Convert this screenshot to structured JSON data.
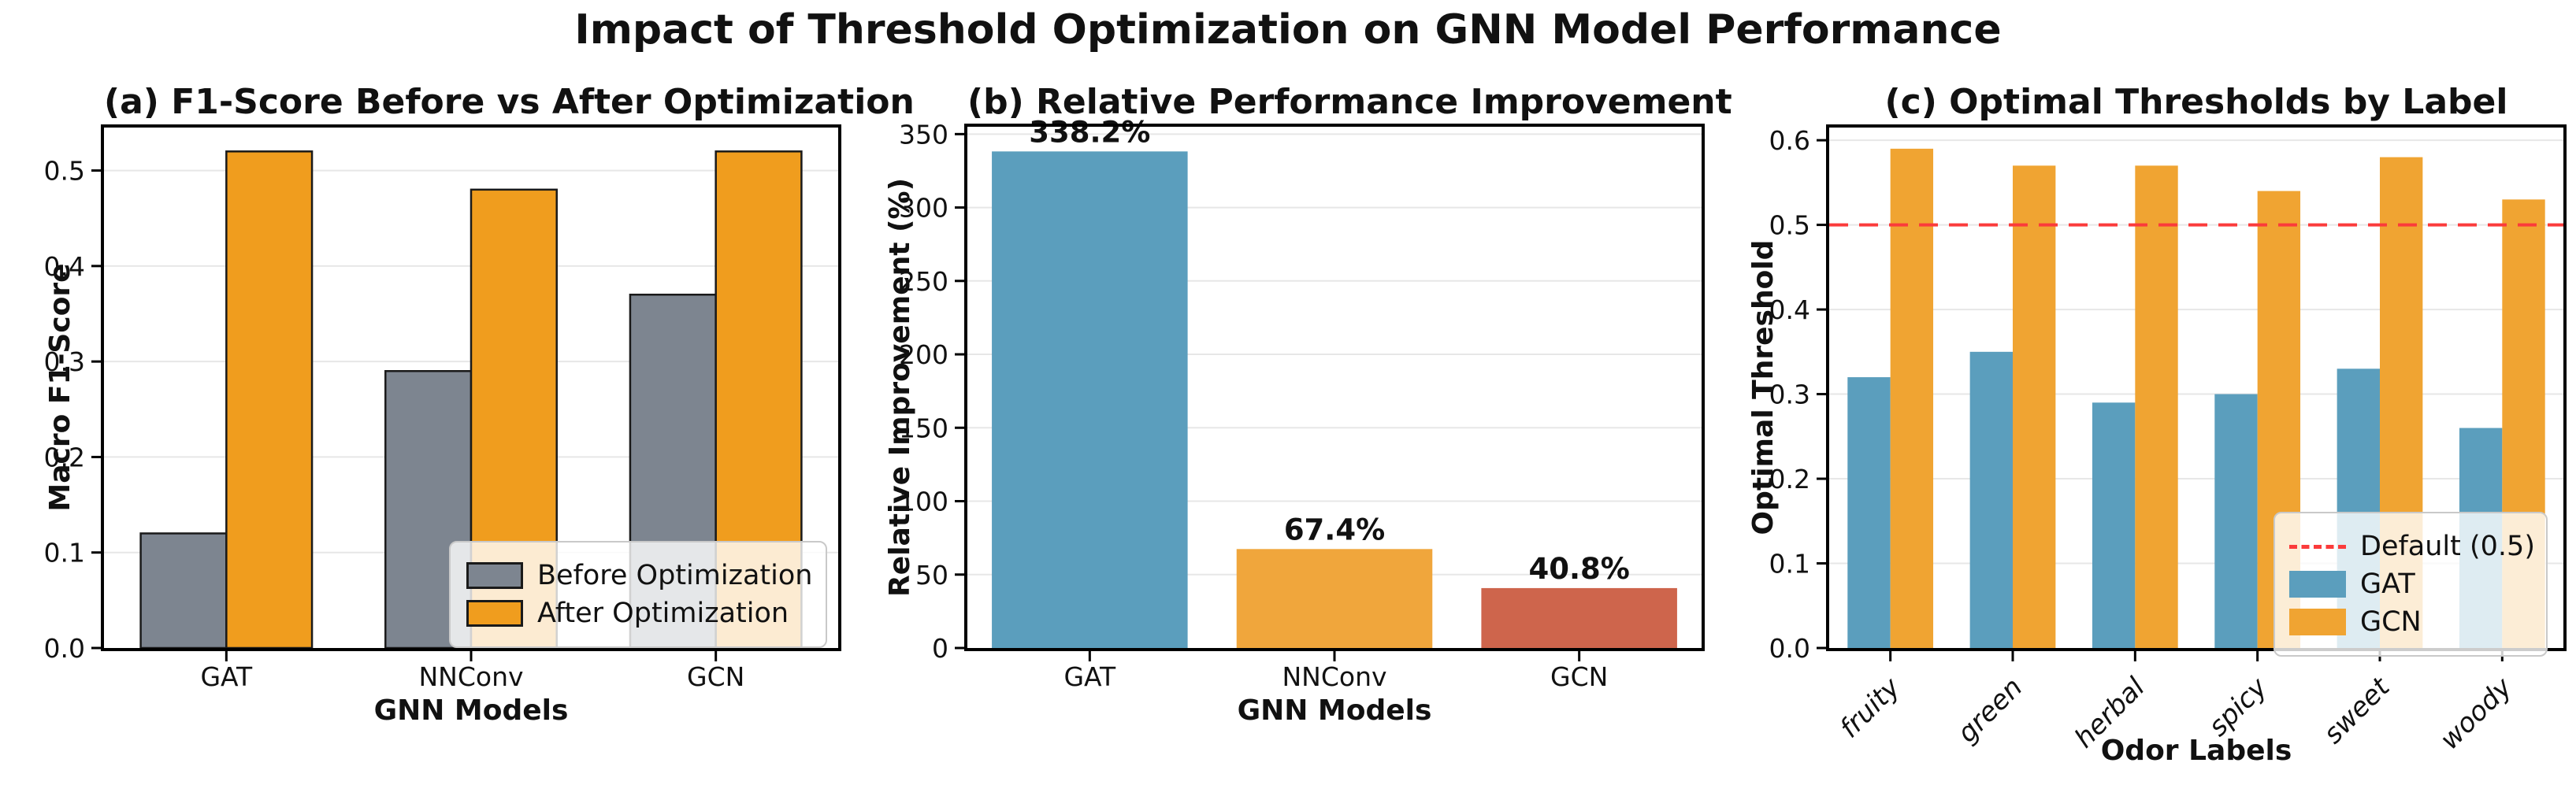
{
  "header": {
    "title": "Impact of Threshold Optimization on GNN Model Performance"
  },
  "palette": {
    "gray": "#7D8590",
    "orange_deep": "#F09D1E",
    "orange": "#F0A63C",
    "orange_c": "#F0A432",
    "blue": "#5B9EBD",
    "red": "#CE654C",
    "hline_red": "#FB3B3B",
    "grid": "#E7E7E7",
    "spine": "#000000"
  },
  "chart_data": [
    {
      "id": "a",
      "type": "bar",
      "title": "(a) F1-Score Before vs After Optimization",
      "xlabel": "GNN Models",
      "ylabel": "Macro F1-Score",
      "categories": [
        "GAT",
        "NNConv",
        "GCN"
      ],
      "series": [
        {
          "name": "Before Optimization",
          "color": "gray",
          "values": [
            0.12,
            0.29,
            0.37
          ]
        },
        {
          "name": "After Optimization",
          "color": "orange_deep",
          "values": [
            0.52,
            0.48,
            0.52
          ]
        }
      ],
      "ylim": [
        0,
        0.545
      ],
      "yticks": [
        {
          "v": 0.0,
          "label": "0.0"
        },
        {
          "v": 0.1,
          "label": "0.1"
        },
        {
          "v": 0.2,
          "label": "0.2"
        },
        {
          "v": 0.3,
          "label": "0.3"
        },
        {
          "v": 0.4,
          "label": "0.4"
        },
        {
          "v": 0.5,
          "label": "0.5"
        }
      ],
      "grid": true,
      "bar_edge": true,
      "legend_position": "lower right"
    },
    {
      "id": "b",
      "type": "bar",
      "title": "(b) Relative Performance Improvement",
      "xlabel": "GNN Models",
      "ylabel": "Relative Improvement (%)",
      "categories": [
        "GAT",
        "NNConv",
        "GCN"
      ],
      "values": [
        338.2,
        67.4,
        40.8
      ],
      "bar_labels": [
        "338.2%",
        "67.4%",
        "40.8%"
      ],
      "bar_colors": [
        "blue",
        "orange",
        "red"
      ],
      "ylim": [
        0,
        355
      ],
      "yticks": [
        {
          "v": 0,
          "label": "0"
        },
        {
          "v": 50,
          "label": "50"
        },
        {
          "v": 100,
          "label": "100"
        },
        {
          "v": 150,
          "label": "150"
        },
        {
          "v": 200,
          "label": "200"
        },
        {
          "v": 250,
          "label": "250"
        },
        {
          "v": 300,
          "label": "300"
        },
        {
          "v": 350,
          "label": "350"
        }
      ],
      "grid": true,
      "bar_edge": false
    },
    {
      "id": "c",
      "type": "bar",
      "title": "(c) Optimal Thresholds by Label",
      "xlabel": "Odor Labels",
      "ylabel": "Optimal Threshold",
      "categories": [
        "fruity",
        "green",
        "herbal",
        "spicy",
        "sweet",
        "woody"
      ],
      "series": [
        {
          "name": "GAT",
          "color": "blue",
          "values": [
            0.32,
            0.35,
            0.29,
            0.3,
            0.33,
            0.26
          ]
        },
        {
          "name": "GCN",
          "color": "orange_c",
          "values": [
            0.59,
            0.57,
            0.57,
            0.54,
            0.58,
            0.53
          ]
        }
      ],
      "hline": {
        "y": 0.5,
        "label": "Default (0.5)",
        "style": "dashed"
      },
      "ylim": [
        0,
        0.615
      ],
      "yticks": [
        {
          "v": 0.0,
          "label": "0.0"
        },
        {
          "v": 0.1,
          "label": "0.1"
        },
        {
          "v": 0.2,
          "label": "0.2"
        },
        {
          "v": 0.3,
          "label": "0.3"
        },
        {
          "v": 0.4,
          "label": "0.4"
        },
        {
          "v": 0.5,
          "label": "0.5"
        },
        {
          "v": 0.6,
          "label": "0.6"
        }
      ],
      "grid": true,
      "bar_edge": false,
      "xtick_rotation": 45,
      "legend_position": "right"
    }
  ]
}
